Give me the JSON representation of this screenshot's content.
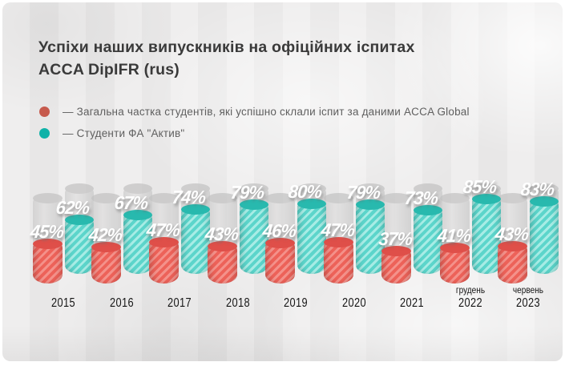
{
  "title": {
    "line1": "Успіхи наших випускників на офіційних іспитах",
    "line2": "ACCA DipIFR (rus)"
  },
  "legend": {
    "items": [
      {
        "label": "—  Загальна частка студентів, які успішно склали іспит за даними ACCA Global",
        "color": "#c65a4d"
      },
      {
        "label": "—  Студенти ФА \"Актив\"",
        "color": "#0fb2a8"
      }
    ]
  },
  "chart_data": {
    "type": "bar",
    "variant": "3d-cylinder-pairs-with-100%-track",
    "title": "Успіхи наших випускників на офіційних іспитах ACCA DipIFR (rus)",
    "categories": [
      "2015",
      "2016",
      "2017",
      "2018",
      "2019",
      "2020",
      "2021",
      "2022",
      "2023"
    ],
    "category_sublabels": [
      "",
      "",
      "",
      "",
      "",
      "",
      "",
      "грудень",
      "червень"
    ],
    "series": [
      {
        "name": "Загальна частка студентів, які успішно склали іспит за даними ACCA Global",
        "values": [
          45,
          42,
          47,
          43,
          46,
          47,
          37,
          41,
          43
        ],
        "body_color": "#ed6259",
        "stripe_color": "#f4918a",
        "cap_color": "#df4f49"
      },
      {
        "name": "Студенти ФА \"Актив\"",
        "values": [
          62,
          67,
          74,
          79,
          80,
          79,
          73,
          85,
          83
        ],
        "body_color": "#5cd5cb",
        "stripe_color": "#a7ece5",
        "cap_color": "#28b9ae"
      }
    ],
    "unit": "%",
    "ylim": [
      0,
      100
    ],
    "grid": false,
    "legend_position": "top-left",
    "track_color": "#d2d2d2"
  }
}
